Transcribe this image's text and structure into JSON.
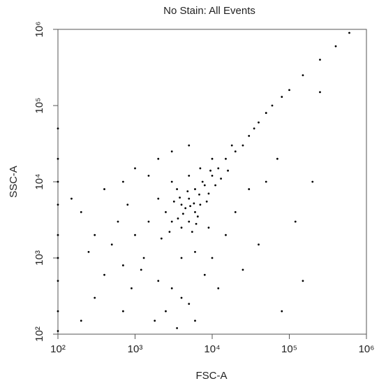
{
  "chart_data": {
    "type": "scatter",
    "title": "No Stain: All Events",
    "x_label": "FSC-A",
    "y_label": "SSC-A",
    "xscale": "log",
    "yscale": "log",
    "xlim": [
      100,
      1000000
    ],
    "ylim": [
      100,
      1000000
    ],
    "xticks": [
      {
        "value": 100,
        "label": "10²"
      },
      {
        "value": 1000,
        "label": "10³"
      },
      {
        "value": 10000,
        "label": "10⁴"
      },
      {
        "value": 100000,
        "label": "10⁵"
      },
      {
        "value": 1000000,
        "label": "10⁶"
      }
    ],
    "yticks": [
      {
        "value": 100,
        "label": "10²"
      },
      {
        "value": 1000,
        "label": "10³"
      },
      {
        "value": 10000,
        "label": "10⁴"
      },
      {
        "value": 100000,
        "label": "10⁵"
      },
      {
        "value": 1000000,
        "label": "10⁶"
      }
    ],
    "color": "#000000",
    "x": [
      3000,
      4000,
      5000,
      6000,
      3500,
      8000,
      10000,
      7000,
      5000,
      4000,
      6000,
      9000,
      12000,
      15000,
      20000,
      25000,
      2500,
      2000,
      3000,
      5000,
      7000,
      10000,
      4500,
      5500,
      6500,
      8500,
      11000,
      13000,
      16000,
      18000,
      30000,
      35000,
      40000,
      50000,
      60000,
      80000,
      100000,
      150000,
      250000,
      400000,
      600000,
      1500,
      1000,
      800,
      600,
      400,
      300,
      200,
      150,
      250,
      500,
      700,
      1200,
      2000,
      3000,
      4000,
      5000,
      2500,
      6000,
      3500,
      8000,
      10000,
      15000,
      20000,
      30000,
      50000,
      70000,
      1000,
      2000,
      700,
      1500,
      3000,
      5000,
      120000,
      200000,
      150000,
      80000,
      40000,
      900,
      400,
      300,
      200,
      700,
      1800,
      100,
      100,
      100,
      100,
      100,
      100,
      100,
      100,
      100,
      250000,
      12000,
      25000,
      6000,
      4000,
      9000,
      2200,
      1300,
      4200,
      5200,
      3800,
      6800,
      7500,
      3200,
      2800,
      4800,
      9500,
      6200,
      5800,
      3600
    ],
    "values": [
      3000,
      5000,
      6000,
      4000,
      8000,
      9000,
      12000,
      5000,
      3000,
      2500,
      8000,
      7000,
      15000,
      20000,
      25000,
      30000,
      4000,
      6000,
      10000,
      12000,
      15000,
      20000,
      4500,
      2200,
      3500,
      5500,
      9000,
      11000,
      14000,
      30000,
      40000,
      50000,
      60000,
      80000,
      100000,
      130000,
      160000,
      250000,
      400000,
      600000,
      900000,
      3000,
      2000,
      5000,
      3000,
      8000,
      2000,
      4000,
      6000,
      1200,
      1500,
      800,
      700,
      500,
      400,
      300,
      250,
      200,
      150,
      120,
      600,
      1000,
      2000,
      4000,
      8000,
      10000,
      20000,
      15000,
      20000,
      10000,
      12000,
      25000,
      30000,
      3000,
      10000,
      500,
      200,
      1500,
      400,
      600,
      300,
      150,
      200,
      150,
      200,
      500,
      1000,
      2000,
      5000,
      10000,
      20000,
      50000,
      110,
      150000,
      400,
      700,
      1200,
      1000,
      2500,
      1800,
      1000,
      3800,
      4800,
      6200,
      6800,
      10000,
      5500,
      2200,
      7500,
      14000,
      2800,
      5200,
      3300
    ]
  }
}
